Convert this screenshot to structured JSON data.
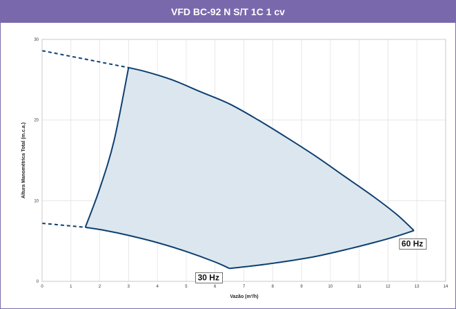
{
  "chart_data": {
    "type": "line",
    "title": "VFD BC-92 N S/T 1C 1 cv",
    "xlabel": "Vazão (m³/h)",
    "ylabel": "Altura Manométrica Total (m.c.a.)",
    "xlim": [
      0,
      14
    ],
    "ylim": [
      0,
      30
    ],
    "x_ticks": [
      "0",
      "1",
      "2",
      "3",
      "4",
      "5",
      "6",
      "7",
      "8",
      "9",
      "10",
      "11",
      "12",
      "13",
      "14"
    ],
    "y_ticks": [
      "0",
      "10",
      "20",
      "30"
    ],
    "grid": true,
    "series": [
      {
        "name": "60 Hz",
        "points": [
          [
            3.0,
            26.5
          ],
          [
            3.6,
            26.0
          ],
          [
            4.5,
            25.0
          ],
          [
            5.5,
            23.5
          ],
          [
            6.5,
            22.0
          ],
          [
            7.5,
            20.0
          ],
          [
            8.5,
            17.8
          ],
          [
            9.5,
            15.5
          ],
          [
            10.5,
            13.0
          ],
          [
            11.5,
            10.5
          ],
          [
            12.3,
            8.3
          ],
          [
            12.9,
            6.3
          ]
        ]
      },
      {
        "name": "30 Hz",
        "points": [
          [
            1.5,
            6.7
          ],
          [
            2.2,
            6.3
          ],
          [
            3.0,
            5.7
          ],
          [
            4.0,
            4.8
          ],
          [
            5.0,
            3.7
          ],
          [
            6.0,
            2.4
          ],
          [
            6.5,
            1.6
          ]
        ]
      }
    ],
    "extrapolated": [
      {
        "points": [
          [
            0,
            28.6
          ],
          [
            3.0,
            26.5
          ]
        ]
      },
      {
        "points": [
          [
            0,
            7.2
          ],
          [
            1.5,
            6.7
          ]
        ]
      }
    ],
    "operating_boundaries": [
      {
        "points": [
          [
            1.5,
            6.7
          ],
          [
            2.0,
            11.5
          ],
          [
            2.5,
            17.5
          ],
          [
            3.0,
            26.5
          ]
        ]
      },
      {
        "points": [
          [
            6.5,
            1.6
          ],
          [
            7.5,
            2.0
          ],
          [
            8.5,
            2.5
          ],
          [
            9.5,
            3.1
          ],
          [
            10.5,
            3.9
          ],
          [
            11.5,
            4.8
          ],
          [
            12.3,
            5.6
          ],
          [
            12.9,
            6.3
          ]
        ]
      }
    ],
    "annotations": [
      {
        "text": "60 Hz",
        "x": 12.9,
        "y": 6.3
      },
      {
        "text": "30 Hz",
        "x": 6.5,
        "y": 1.6
      }
    ],
    "colors": {
      "curve": "#0d3f70",
      "fill": "#dbe6ee",
      "header": "#7a68ad",
      "grid": "#e2e2e2"
    }
  }
}
